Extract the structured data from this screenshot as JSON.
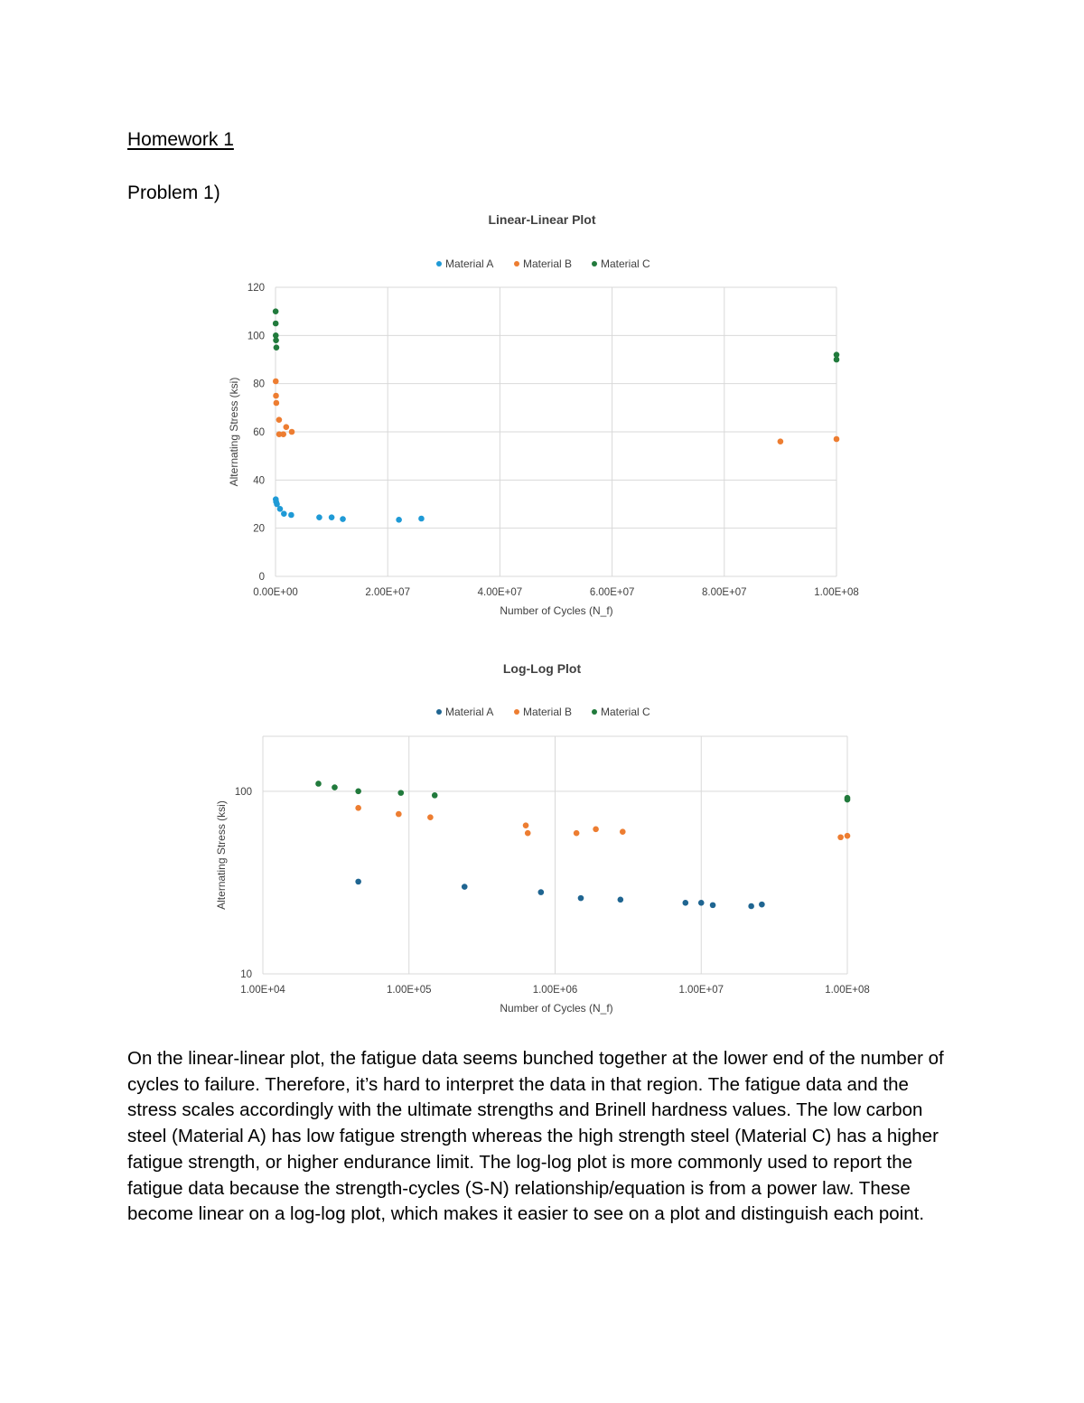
{
  "document": {
    "title": "Homework 1",
    "problem_label": "Problem 1)",
    "paragraph": "On the linear-linear plot, the fatigue data seems bunched together at the lower end of the number of cycles to failure. Therefore, it’s hard to interpret the data in that region. The fatigue data and the stress scales accordingly with the ultimate strengths and Brinell hardness values. The low carbon steel (Material A) has low fatigue strength whereas the high strength steel (Material C) has a higher fatigue strength, or higher endurance limit. The log-log plot is more commonly used to report the fatigue data because the strength-cycles (S-N) relationship/equation is from a power law. These become linear on a log-log plot, which makes it easier to see on a plot and distinguish each point."
  },
  "chart_data": [
    {
      "type": "scatter",
      "title": "Linear-Linear Plot",
      "xlabel": "Number of Cycles (N_f)",
      "ylabel": "Alternating Stress (ksi)",
      "xlim": [
        0,
        100000000
      ],
      "ylim": [
        0,
        120
      ],
      "x_ticks": [
        0,
        20000000,
        40000000,
        60000000,
        80000000,
        100000000
      ],
      "x_tick_labels": [
        "0.00E+00",
        "2.00E+07",
        "4.00E+07",
        "6.00E+07",
        "8.00E+07",
        "1.00E+08"
      ],
      "y_ticks": [
        0,
        20,
        40,
        60,
        80,
        100,
        120
      ],
      "y_tick_labels": [
        "0",
        "20",
        "40",
        "60",
        "80",
        "100",
        "120"
      ],
      "grid": true,
      "legend_position": "top",
      "series": [
        {
          "name": "Material A",
          "color": "#1f9ad6",
          "points": [
            [
              45000,
              32
            ],
            [
              100000,
              31
            ],
            [
              250000,
              30
            ],
            [
              800000,
              28
            ],
            [
              1500000,
              26
            ],
            [
              2800000,
              25.5
            ],
            [
              7800000,
              24.5
            ],
            [
              10000000,
              24.5
            ],
            [
              12000000,
              23.8
            ],
            [
              22000000,
              23.5
            ],
            [
              26000000,
              24
            ]
          ]
        },
        {
          "name": "Material B",
          "color": "#ed7d31",
          "points": [
            [
              45000,
              81
            ],
            [
              85000,
              75
            ],
            [
              140000,
              72
            ],
            [
              630000,
              65
            ],
            [
              650000,
              59
            ],
            [
              1400000,
              59
            ],
            [
              1900000,
              62
            ],
            [
              2900000,
              60
            ],
            [
              90000000,
              56
            ],
            [
              100000000,
              57
            ]
          ]
        },
        {
          "name": "Material C",
          "color": "#217a3c",
          "points": [
            [
              24000,
              110
            ],
            [
              31000,
              105
            ],
            [
              45000,
              100
            ],
            [
              88000,
              98
            ],
            [
              150000,
              95
            ],
            [
              100000000,
              92
            ],
            [
              100000000,
              90
            ]
          ]
        }
      ]
    },
    {
      "type": "scatter",
      "title": "Log-Log Plot",
      "xlabel": "Number of Cycles (N_f)",
      "ylabel": "Alternating Stress (ksi)",
      "xlim": [
        10000,
        100000000
      ],
      "ylim": [
        10,
        200
      ],
      "x_scale": "log",
      "y_scale": "log",
      "x_ticks": [
        10000,
        100000,
        1000000,
        10000000,
        100000000
      ],
      "x_tick_labels": [
        "1.00E+04",
        "1.00E+05",
        "1.00E+06",
        "1.00E+07",
        "1.00E+08"
      ],
      "y_ticks": [
        10,
        100
      ],
      "y_tick_labels": [
        "10",
        "100"
      ],
      "grid": true,
      "legend_position": "top",
      "series": [
        {
          "name": "Material A",
          "color": "#1f6591",
          "points": [
            [
              45000,
              32
            ],
            [
              240000,
              30
            ],
            [
              800000,
              28
            ],
            [
              1500000,
              26
            ],
            [
              2800000,
              25.5
            ],
            [
              7800000,
              24.5
            ],
            [
              10000000,
              24.5
            ],
            [
              12000000,
              23.8
            ],
            [
              22000000,
              23.5
            ],
            [
              26000000,
              24
            ]
          ]
        },
        {
          "name": "Material B",
          "color": "#ed7d31",
          "points": [
            [
              45000,
              81
            ],
            [
              85000,
              75
            ],
            [
              140000,
              72
            ],
            [
              630000,
              65
            ],
            [
              650000,
              59
            ],
            [
              1400000,
              59
            ],
            [
              1900000,
              62
            ],
            [
              2900000,
              60
            ],
            [
              90000000,
              56
            ],
            [
              100000000,
              57
            ]
          ]
        },
        {
          "name": "Material C",
          "color": "#217a3c",
          "points": [
            [
              24000,
              110
            ],
            [
              31000,
              105
            ],
            [
              45000,
              100
            ],
            [
              88000,
              98
            ],
            [
              150000,
              95
            ],
            [
              100000000,
              92
            ],
            [
              100000000,
              90
            ]
          ]
        }
      ]
    }
  ]
}
